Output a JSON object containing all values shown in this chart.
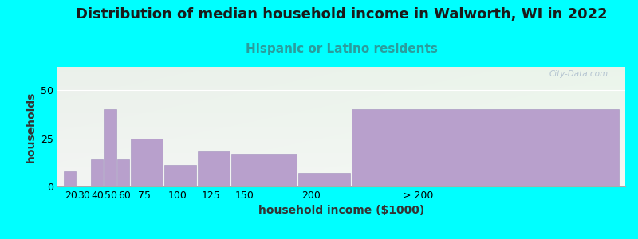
{
  "title": "Distribution of median household income in Walworth, WI in 2022",
  "subtitle": "Hispanic or Latino residents",
  "xlabel": "household income ($1000)",
  "ylabel": "households",
  "background_color": "#00FFFF",
  "bar_color": "#b8a0cc",
  "bar_edge_color": "#a090bc",
  "bar_heights": [
    8,
    0,
    14,
    40,
    14,
    25,
    11,
    18,
    17,
    7,
    40
  ],
  "bar_lefts": [
    15,
    25,
    35,
    45,
    55,
    65,
    90,
    115,
    140,
    190,
    230
  ],
  "bar_widths": [
    9,
    9,
    9,
    9,
    9,
    24,
    24,
    24,
    49,
    39,
    200
  ],
  "xtick_positions": [
    20,
    30,
    40,
    50,
    60,
    75,
    100,
    125,
    150,
    200,
    280
  ],
  "xtick_labels": [
    "20",
    "30",
    "40",
    "50",
    "60",
    "75",
    "100",
    "125",
    "150",
    "200",
    "> 200"
  ],
  "ylim": [
    0,
    62
  ],
  "xlim": [
    10,
    435
  ],
  "yticks": [
    0,
    25,
    50
  ],
  "title_fontsize": 13,
  "subtitle_fontsize": 11,
  "axis_label_fontsize": 10,
  "tick_fontsize": 9,
  "subtitle_color": "#2a9d9d",
  "title_color": "#1a1a1a",
  "watermark": "City-Data.com"
}
